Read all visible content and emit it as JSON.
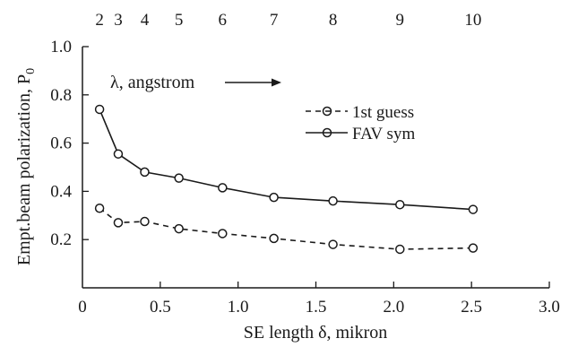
{
  "chart_data": {
    "type": "line",
    "xlabel": "SE length δ, mikron",
    "ylabel": "Empt.beam polarization, P",
    "ylabel_subscript": "0",
    "xlim": [
      0,
      3.0
    ],
    "ylim": [
      0,
      1.0
    ],
    "x_ticks": [
      0,
      0.5,
      1.0,
      1.5,
      2.0,
      2.5,
      3.0
    ],
    "x_tick_labels": [
      "0",
      "0.5",
      "1.0",
      "1.5",
      "2.0",
      "2.5",
      "3.0"
    ],
    "y_ticks": [
      0.2,
      0.4,
      0.6,
      0.8,
      1.0
    ],
    "y_tick_labels": [
      "0.2",
      "0.4",
      "0.6",
      "0.8",
      "1.0"
    ],
    "top_axis": {
      "label": "λ, angstrom",
      "ticks": [
        {
          "x": 0.11,
          "label": "2"
        },
        {
          "x": 0.23,
          "label": "3"
        },
        {
          "x": 0.4,
          "label": "4"
        },
        {
          "x": 0.62,
          "label": "5"
        },
        {
          "x": 0.9,
          "label": "6"
        },
        {
          "x": 1.23,
          "label": "7"
        },
        {
          "x": 1.61,
          "label": "8"
        },
        {
          "x": 2.04,
          "label": "9"
        },
        {
          "x": 2.51,
          "label": "10"
        }
      ]
    },
    "legend_position": "upper-right",
    "grid": false,
    "series": [
      {
        "name": "1st guess",
        "style": "dashed",
        "color": "#1a1a1a",
        "x": [
          0.11,
          0.23,
          0.4,
          0.62,
          0.9,
          1.23,
          1.61,
          2.04,
          2.51
        ],
        "y": [
          0.33,
          0.27,
          0.275,
          0.245,
          0.225,
          0.205,
          0.18,
          0.16,
          0.165
        ]
      },
      {
        "name": "FAV sym",
        "style": "solid",
        "color": "#1a1a1a",
        "x": [
          0.11,
          0.23,
          0.4,
          0.62,
          0.9,
          1.23,
          1.61,
          2.04,
          2.51
        ],
        "y": [
          0.74,
          0.555,
          0.48,
          0.455,
          0.415,
          0.375,
          0.36,
          0.345,
          0.325
        ]
      }
    ]
  }
}
